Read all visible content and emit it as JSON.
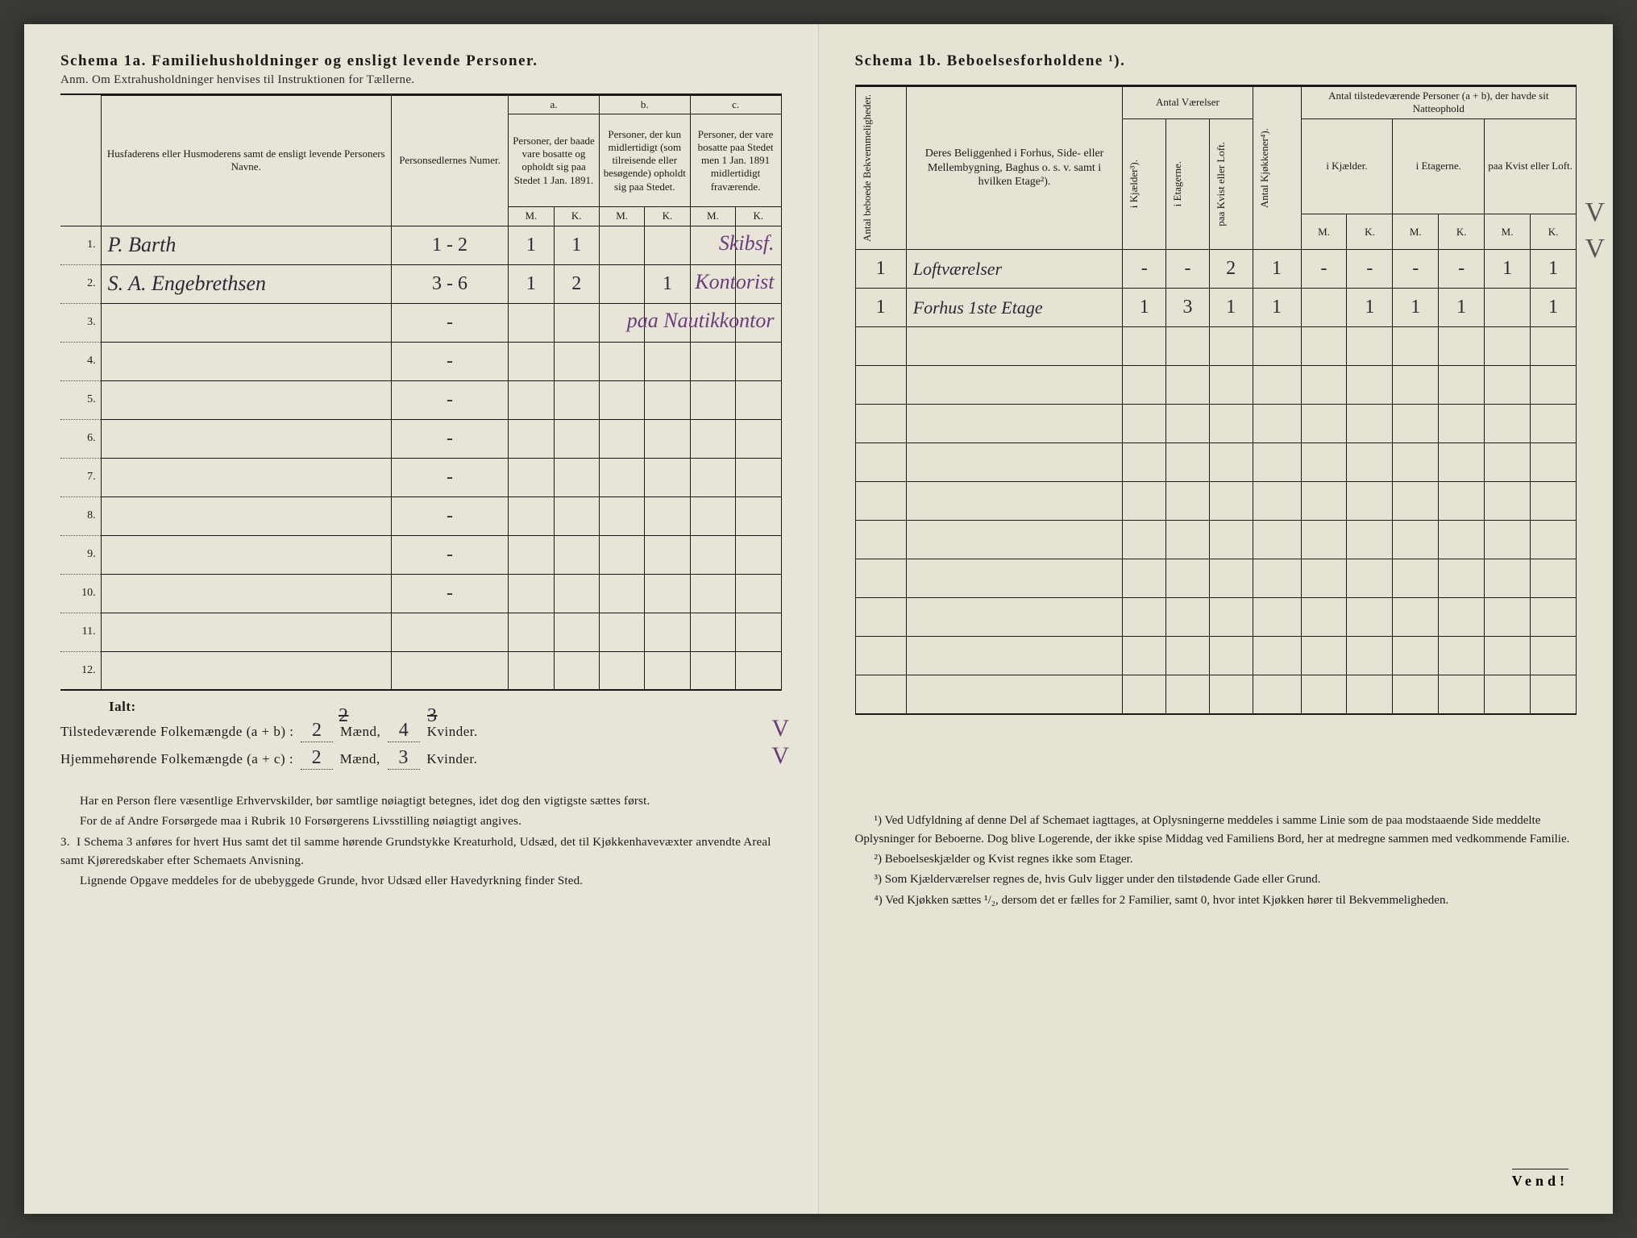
{
  "page": {
    "background_color": "#e8e5d8",
    "ink_color": "#1a1a1a",
    "handwriting_color": "#2a2a35",
    "purple_ink": "#6b3c7a"
  },
  "left": {
    "title": "Schema 1a.  Familiehusholdninger og ensligt levende Personer.",
    "subtitle": "Anm. Om Extrahusholdninger henvises til Instruktionen for Tællerne.",
    "headers": {
      "name": "Husfaderens eller Husmoderens samt de ensligt levende Personers Navne.",
      "person_num": "Personsedlernes Numer.",
      "col_a_label": "a.",
      "col_a": "Personer, der baade vare bosatte og opholdt sig paa Stedet 1 Jan. 1891.",
      "col_b_label": "b.",
      "col_b": "Personer, der kun midlertidigt (som tilreisende eller besøgende) opholdt sig paa Stedet.",
      "col_c_label": "c.",
      "col_c": "Personer, der vare bosatte paa Stedet men 1 Jan. 1891 midlertidigt fraværende.",
      "m": "M.",
      "k": "K."
    },
    "rows": [
      {
        "n": "1.",
        "name": "P. Barth",
        "num": "1 - 2",
        "a_m": "1",
        "a_k": "1",
        "b_m": "",
        "b_k": "",
        "c_m": "",
        "c_k": "",
        "annot": "Skibsf."
      },
      {
        "n": "2.",
        "name": "S. A. Engebrethsen",
        "num": "3 - 6",
        "a_m": "1",
        "a_k": "2",
        "b_m": "",
        "b_k": "1",
        "c_m": "",
        "c_k": "",
        "annot": "Kontorist"
      },
      {
        "n": "3.",
        "name": "",
        "num": "-",
        "a_m": "",
        "a_k": "",
        "b_m": "",
        "b_k": "",
        "c_m": "",
        "c_k": "",
        "annot": "paa Nautikkontor"
      },
      {
        "n": "4.",
        "name": "",
        "num": "-",
        "a_m": "",
        "a_k": "",
        "b_m": "",
        "b_k": "",
        "c_m": "",
        "c_k": ""
      },
      {
        "n": "5.",
        "name": "",
        "num": "-",
        "a_m": "",
        "a_k": "",
        "b_m": "",
        "b_k": "",
        "c_m": "",
        "c_k": ""
      },
      {
        "n": "6.",
        "name": "",
        "num": "-",
        "a_m": "",
        "a_k": "",
        "b_m": "",
        "b_k": "",
        "c_m": "",
        "c_k": ""
      },
      {
        "n": "7.",
        "name": "",
        "num": "-",
        "a_m": "",
        "a_k": "",
        "b_m": "",
        "b_k": "",
        "c_m": "",
        "c_k": ""
      },
      {
        "n": "8.",
        "name": "",
        "num": "-",
        "a_m": "",
        "a_k": "",
        "b_m": "",
        "b_k": "",
        "c_m": "",
        "c_k": ""
      },
      {
        "n": "9.",
        "name": "",
        "num": "-",
        "a_m": "",
        "a_k": "",
        "b_m": "",
        "b_k": "",
        "c_m": "",
        "c_k": ""
      },
      {
        "n": "10.",
        "name": "",
        "num": "-",
        "a_m": "",
        "a_k": "",
        "b_m": "",
        "b_k": "",
        "c_m": "",
        "c_k": ""
      },
      {
        "n": "11.",
        "name": "",
        "num": "",
        "a_m": "",
        "a_k": "",
        "b_m": "",
        "b_k": "",
        "c_m": "",
        "c_k": ""
      },
      {
        "n": "12.",
        "name": "",
        "num": "",
        "a_m": "",
        "a_k": "",
        "b_m": "",
        "b_k": "",
        "c_m": "",
        "c_k": ""
      }
    ],
    "totals": {
      "ialt": "Ialt:",
      "line1_label": "Tilstedeværende Folkemængde (a + b) :",
      "line1_m_struck": "2",
      "line1_m": "2",
      "line1_k_struck": "3",
      "line1_k": "4",
      "line2_label": "Hjemmehørende Folkemængde (a + c) :",
      "line2_m": "2",
      "line2_k": "3",
      "maend": "Mænd,",
      "kvinder": "Kvinder."
    },
    "footnotes": {
      "p1": "Har en Person flere væsentlige Erhvervskilder, bør samtlige nøiagtigt betegnes, idet dog den vigtigste sættes først.",
      "p2": "For de af Andre Forsørgede maa i Rubrik 10 Forsørgerens Livsstilling nøiagtigt angives.",
      "p3_num": "3.",
      "p3": "I Schema 3 anføres for hvert Hus samt det til samme hørende Grundstykke Kreaturhold, Udsæd, det til Kjøkkenhavevæxter anvendte Areal samt Kjøreredskaber efter Schemaets Anvisning.",
      "p4": "Lignende Opgave meddeles for de ubebyggede Grunde, hvor Udsæd eller Havedyrkning finder Sted."
    }
  },
  "right": {
    "title": "Schema 1b.                               Beboelsesforholdene ¹).",
    "headers": {
      "antal_bekv": "Antal beboede Bekvemmeligheder.",
      "beliggenhed": "Deres Beliggenhed i Forhus, Side- eller Mellembygning, Baghus o. s. v. samt i hvilken Etage²).",
      "antal_vaerelser": "Antal Værelser",
      "i_kjaelder": "i Kjælder³).",
      "i_etagerne": "i Etagerne.",
      "paa_kvist": "paa Kvist eller Loft.",
      "antal_kjokkener": "Antal Kjøkkener⁴).",
      "antal_personer": "Antal tilstedeværende Personer (a + b), der havde sit Natteophold",
      "nat_kjaelder": "i Kjælder.",
      "nat_etagerne": "i Etagerne.",
      "nat_kvist": "paa Kvist eller Loft.",
      "m": "M.",
      "k": "K."
    },
    "rows": [
      {
        "bekv": "1",
        "belig": "Loftværelser",
        "kj": "-",
        "et": "-",
        "kv": "2",
        "kjok": "1",
        "km": "-",
        "kk": "-",
        "em": "-",
        "ek": "-",
        "lm": "1",
        "lk": "1"
      },
      {
        "bekv": "1",
        "belig": "Forhus 1ste Etage",
        "kj": "1",
        "et": "3",
        "kv": "1",
        "kjok": "1",
        "km": "",
        "kk": "1",
        "em": "1",
        "ek": "1",
        "lm": "",
        "lk": "1"
      }
    ],
    "footnotes": {
      "f1": "¹) Ved Udfyldning af denne Del af Schemaet iagttages, at Oplysningerne meddeles i samme Linie som de paa modstaaende Side meddelte Oplysninger for Beboerne. Dog blive Logerende, der ikke spise Middag ved Familiens Bord, her at medregne sammen med vedkommende Familie.",
      "f2": "²) Beboelseskjælder og Kvist regnes ikke som Etager.",
      "f3": "³) Som Kjælderværelser regnes de, hvis Gulv ligger under den tilstødende Gade eller Grund.",
      "f4": "⁴) Ved Kjøkken sættes ¹/₂, dersom det er fælles for 2 Familier, samt 0, hvor intet Kjøkken hører til Bekvemmeligheden."
    },
    "vend": "Vend!"
  }
}
